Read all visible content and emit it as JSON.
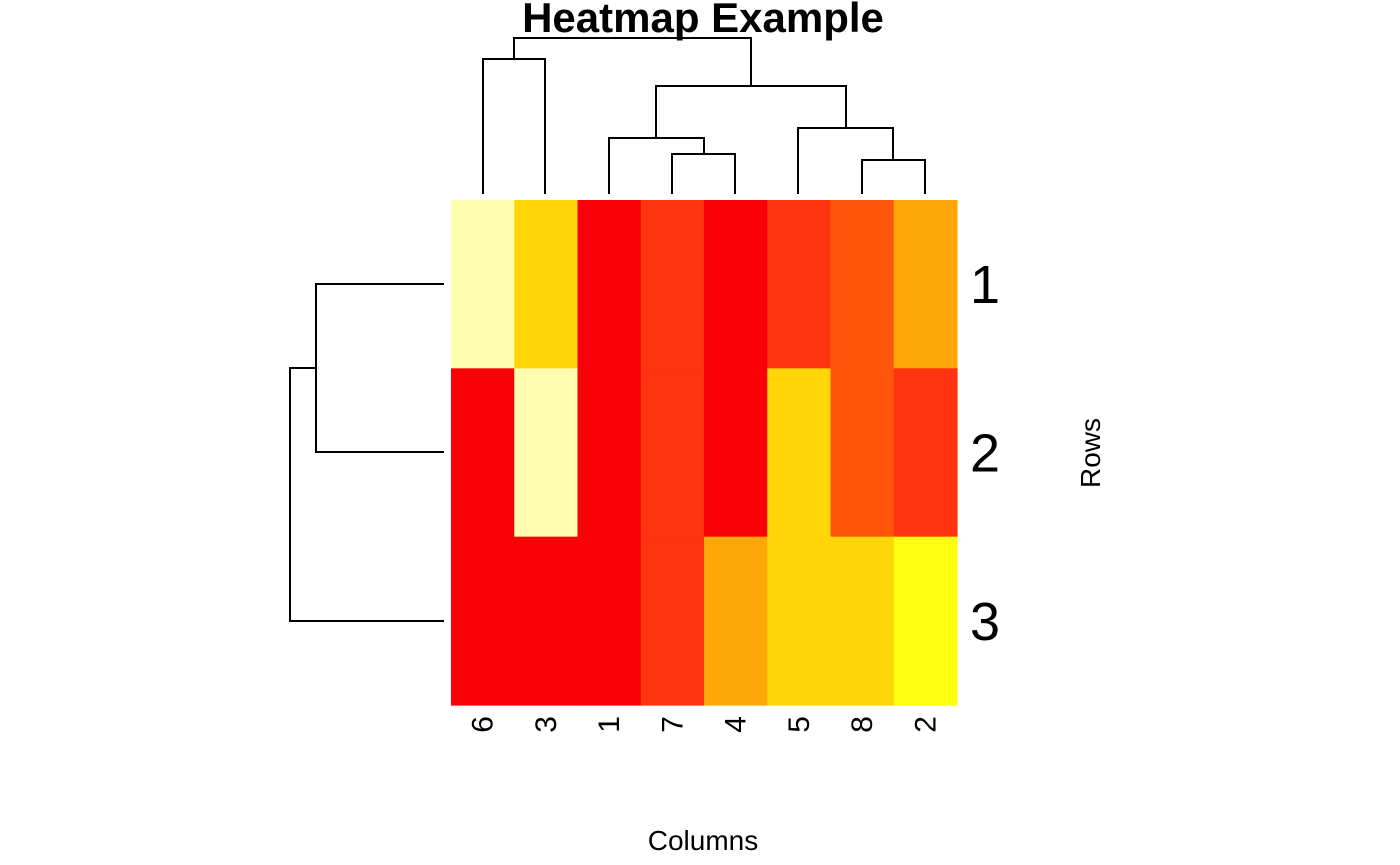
{
  "chart_data": {
    "type": "heatmap",
    "title": "Heatmap Example",
    "xlabel": "Columns",
    "ylabel": "Rows",
    "columns": [
      "6",
      "3",
      "1",
      "7",
      "4",
      "5",
      "8",
      "2"
    ],
    "rows": [
      "1",
      "2",
      "3"
    ],
    "color_scale": [
      "#FF0000",
      "#FF3300",
      "#FF5500",
      "#FFAA00",
      "#FFD700",
      "#FFFFAA",
      "#FFFF00"
    ],
    "values": [
      [
        5,
        4,
        0,
        1,
        0,
        1,
        2,
        3
      ],
      [
        0,
        5,
        0,
        1,
        0,
        4,
        2,
        1
      ],
      [
        0,
        0,
        0,
        1,
        3,
        4,
        4,
        6
      ]
    ],
    "cell_colors": [
      [
        "#FFFDB0",
        "#FFD60A",
        "#FA0007",
        "#FF330D",
        "#FA0007",
        "#FF330D",
        "#FF550D",
        "#FFA60A"
      ],
      [
        "#FA0007",
        "#FFFDB0",
        "#FA0007",
        "#FF330D",
        "#FA0007",
        "#FFD60A",
        "#FF550D",
        "#FF330D"
      ],
      [
        "#FA0007",
        "#FA0007",
        "#FA0007",
        "#FF330D",
        "#FFA60A",
        "#FFD60A",
        "#FFD60A",
        "#FFFF14"
      ]
    ],
    "row_dendrogram": "((1,2),3)",
    "column_dendrogram": "((6,3),((1,(7,4)),(5,(8,2))))"
  }
}
